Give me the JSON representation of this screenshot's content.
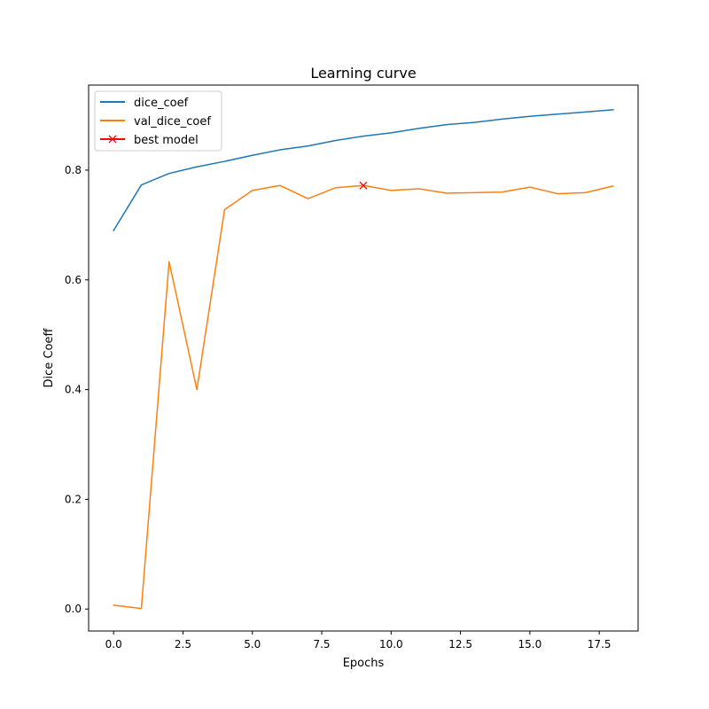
{
  "chart_data": {
    "type": "line",
    "title": "Learning curve",
    "xlabel": "Epochs",
    "ylabel": "Dice Coeff",
    "xlim": [
      -0.9,
      18.9
    ],
    "ylim": [
      -0.04,
      0.955
    ],
    "xticks": [
      0,
      2.5,
      5,
      7.5,
      10,
      12.5,
      15,
      17.5
    ],
    "xtick_labels": [
      "0.0",
      "2.5",
      "5.0",
      "7.5",
      "10.0",
      "12.5",
      "15.0",
      "17.5"
    ],
    "yticks": [
      0,
      0.2,
      0.4,
      0.6,
      0.8
    ],
    "ytick_labels": [
      "0.0",
      "0.2",
      "0.4",
      "0.6",
      "0.8"
    ],
    "grid": false,
    "legend_position": "top-left",
    "x": [
      0,
      1,
      2,
      3,
      4,
      5,
      6,
      7,
      8,
      9,
      10,
      11,
      12,
      13,
      14,
      15,
      16,
      17,
      18
    ],
    "series": [
      {
        "name": "dice_coef",
        "color": "#1f77b4",
        "values": [
          0.69,
          0.773,
          0.794,
          0.806,
          0.816,
          0.827,
          0.837,
          0.844,
          0.854,
          0.862,
          0.868,
          0.876,
          0.883,
          0.887,
          0.893,
          0.898,
          0.902,
          0.906,
          0.91
        ]
      },
      {
        "name": "val_dice_coef",
        "color": "#ff7f0e",
        "values": [
          0.007,
          0.001,
          0.633,
          0.4,
          0.728,
          0.763,
          0.772,
          0.748,
          0.768,
          0.772,
          0.763,
          0.766,
          0.758,
          0.759,
          0.76,
          0.769,
          0.757,
          0.759,
          0.771
        ]
      }
    ],
    "markers": [
      {
        "name": "best model",
        "color": "#ff0000",
        "symbol": "x",
        "x": 9,
        "y": 0.772
      }
    ]
  }
}
